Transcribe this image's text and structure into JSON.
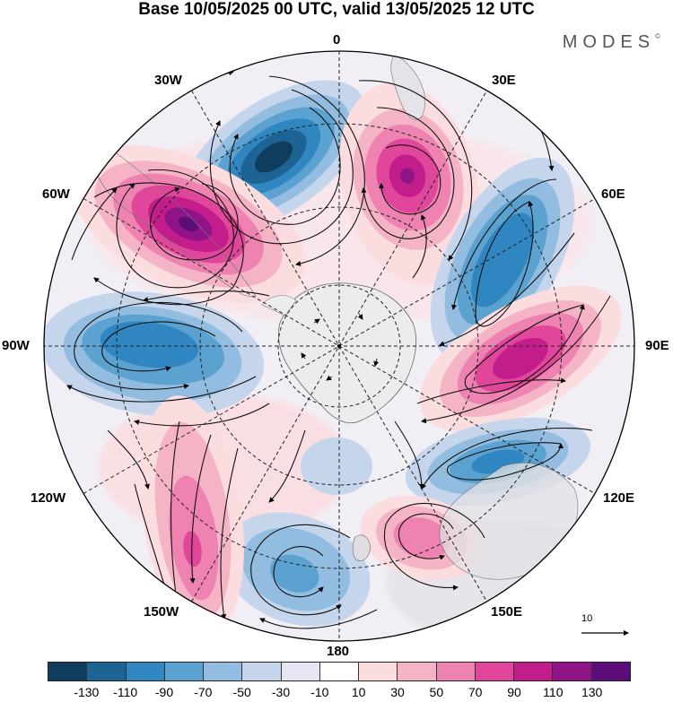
{
  "title": "Base 10/05/2025 00 UTC, valid 13/05/2025 12 UTC",
  "brand": "MODES",
  "brand_mark": "©",
  "lon_labels": {
    "l0": "0",
    "l30e": "30E",
    "l60e": "60E",
    "l90e": "90E",
    "l120e": "120E",
    "l150e": "150E",
    "l180": "180",
    "l150w": "150W",
    "l120w": "120W",
    "l90w": "90W",
    "l60w": "60W",
    "l30w": "30W"
  },
  "ref_vector": "10",
  "colorbar": {
    "colors": [
      "#0e3d5e",
      "#1d6394",
      "#2f86c1",
      "#5ba2d0",
      "#93bde0",
      "#c5d6ec",
      "#e6e6f2",
      "#ffffff",
      "#fbdcdf",
      "#f4b4c6",
      "#ee82b0",
      "#e0479b",
      "#c21d8a",
      "#8f1488",
      "#5d0d7a"
    ],
    "ticks": [
      "-130",
      "-110",
      "-90",
      "-70",
      "-50",
      "-30",
      "-10",
      "10",
      "30",
      "50",
      "70",
      "90",
      "110",
      "130"
    ]
  }
}
